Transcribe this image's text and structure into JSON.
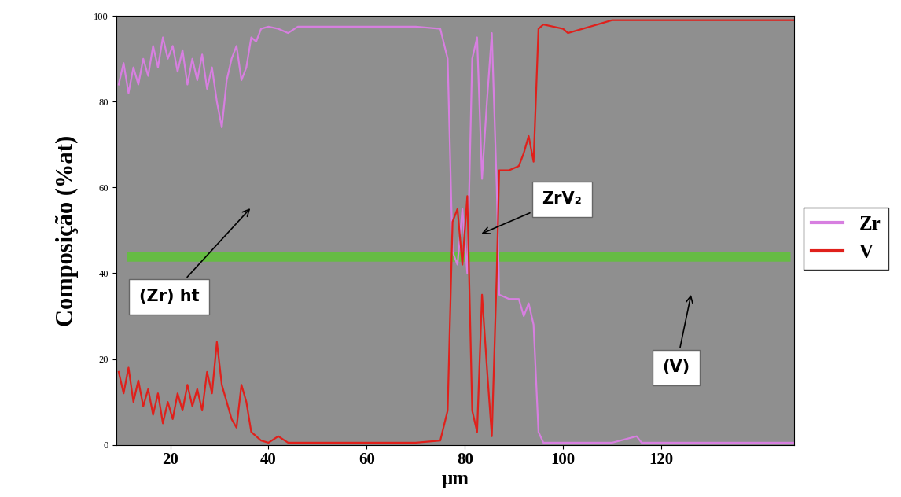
{
  "chart_data": {
    "type": "line",
    "x_label": "μm",
    "y_label": "Composição (%at)",
    "x": [
      9.5,
      10.5,
      11.5,
      12.5,
      13.5,
      14.5,
      15.5,
      16.5,
      17.5,
      18.5,
      19.5,
      20.5,
      21.5,
      22.5,
      23.5,
      24.5,
      25.5,
      26.5,
      27.5,
      28.5,
      29.5,
      30.5,
      31.5,
      32.5,
      33.5,
      34.5,
      35.5,
      36.5,
      37.5,
      38.5,
      40,
      42,
      44,
      46,
      50,
      55,
      60,
      65,
      70,
      75,
      76.5,
      77.5,
      78.5,
      79.5,
      80.5,
      81.5,
      82.5,
      83.5,
      84.5,
      85.5,
      86.5,
      87,
      89,
      91,
      92,
      93,
      94,
      95,
      96,
      100,
      101,
      110,
      115,
      116,
      130,
      147
    ],
    "series": [
      {
        "name": "Zr",
        "color": "#d77fe0",
        "values": [
          84,
          89,
          82,
          88,
          84,
          90,
          86,
          93,
          88,
          95,
          90,
          93,
          87,
          92,
          84,
          90,
          85,
          91,
          83,
          88,
          80,
          74,
          85,
          90,
          93,
          85,
          88,
          95,
          94,
          97,
          97.5,
          97,
          96,
          97.5,
          97.5,
          97.5,
          97.5,
          97.5,
          97.5,
          97,
          90,
          45,
          42,
          55,
          40,
          90,
          95,
          62,
          80,
          96,
          60,
          35,
          34,
          34,
          30,
          33,
          28,
          3,
          0.5,
          0.5,
          0.5,
          0.5,
          2,
          0.5,
          0.5,
          0.5
        ]
      },
      {
        "name": "V",
        "color": "#e0201b",
        "values": [
          17,
          12,
          18,
          10,
          15,
          9,
          13,
          7,
          12,
          5,
          10,
          6,
          12,
          8,
          14,
          9,
          13,
          8,
          17,
          12,
          24,
          14,
          10,
          6,
          4,
          14,
          10,
          3,
          2,
          1,
          0.5,
          2,
          0.5,
          0.5,
          0.5,
          0.5,
          0.5,
          0.5,
          0.5,
          1,
          8,
          52,
          55,
          42,
          58,
          8,
          3,
          35,
          18,
          2,
          40,
          64,
          64,
          65,
          68,
          72,
          66,
          97,
          98,
          97,
          96,
          99,
          99,
          99,
          99,
          99
        ]
      }
    ],
    "annotations": [
      "(Zr) ht",
      "ZrV₂",
      "(V)"
    ],
    "xlim": [
      9,
      147
    ],
    "xticks": [
      20,
      40,
      60,
      80,
      100,
      120
    ],
    "ylim": [
      0,
      100
    ],
    "yticks": [
      0,
      20,
      40,
      60,
      80,
      100
    ],
    "grid": false,
    "legend": "right"
  }
}
